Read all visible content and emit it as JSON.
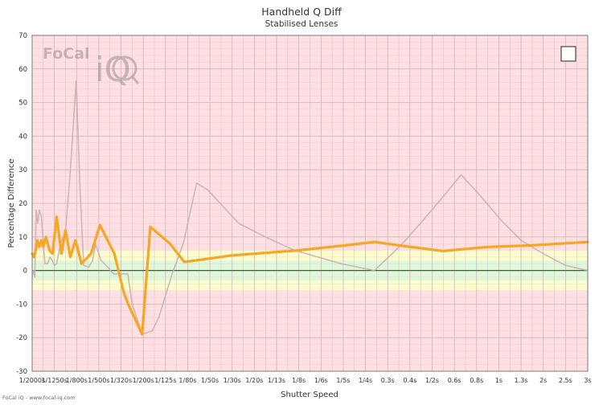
{
  "chart_data": {
    "type": "line",
    "title": "Handheld Q Diff",
    "subtitle": "Stabilised Lenses",
    "xlabel": "Shutter Speed",
    "ylabel": "Percentage Difference",
    "ylim": [
      -30,
      70
    ],
    "yticks": [
      -30,
      -20,
      -10,
      0,
      10,
      20,
      30,
      40,
      50,
      60,
      70
    ],
    "categories": [
      "1/2000s",
      "1/1250s",
      "1/800s",
      "1/500s",
      "1/320s",
      "1/200s",
      "1/125s",
      "1/80s",
      "1/50s",
      "1/30s",
      "1/20s",
      "1/13s",
      "1/8s",
      "1/6s",
      "1/5s",
      "1/4s",
      "0.3s",
      "0.4s",
      "1/2s",
      "0.6s",
      "0.8s",
      "1s",
      "1.3s",
      "2s",
      "2.5s",
      "3s"
    ],
    "bands": [
      {
        "from": -30,
        "to": -6,
        "color": "#ffdfe2"
      },
      {
        "from": -6,
        "to": -3,
        "color": "#fdfccf"
      },
      {
        "from": -3,
        "to": 3,
        "color": "#e1f7d9"
      },
      {
        "from": 3,
        "to": 6,
        "color": "#fdfccf"
      },
      {
        "from": 6,
        "to": 70,
        "color": "#ffdfe2"
      }
    ],
    "grid": true,
    "legend": "top-right",
    "series": [
      {
        "color": "#c4aeb4",
        "x": [
          0,
          0.06,
          0.12,
          0.18,
          0.25,
          0.32,
          0.42,
          0.5,
          0.58,
          0.7,
          0.8,
          0.9,
          1.0,
          1.1,
          1.28,
          1.5,
          1.7,
          1.98,
          2.15,
          2.32,
          2.55,
          2.72,
          2.85,
          3.1,
          3.4,
          3.65,
          3.9,
          4.08,
          4.3,
          4.5,
          4.95,
          5.4,
          5.7,
          6.3,
          6.8,
          7.4,
          7.9,
          8.6,
          9.3,
          10.5,
          11.8,
          13.9,
          15.4,
          16.2,
          16.8,
          17.2,
          17.6,
          18.5,
          19.3,
          20.2,
          21.1,
          22.0,
          23.0,
          24.0,
          25.0
        ],
        "y": [
          -2,
          0,
          -2,
          18,
          14,
          18,
          16,
          8,
          2,
          2,
          4,
          3,
          1.5,
          2,
          8,
          12,
          28,
          56.5,
          25,
          1.5,
          1,
          3,
          8,
          3,
          1,
          -1,
          -1,
          -1,
          -1,
          -10,
          -19,
          -18,
          -14,
          -1,
          8,
          26,
          24,
          19,
          14,
          10,
          6,
          2,
          0,
          5,
          9,
          12,
          15,
          22,
          28.5,
          22,
          15,
          9,
          5,
          1.5,
          0
        ]
      },
      {
        "color": "#f5a724",
        "x": [
          0,
          0.08,
          0.16,
          0.24,
          0.32,
          0.42,
          0.5,
          0.62,
          0.78,
          0.92,
          1.1,
          1.32,
          1.5,
          1.72,
          1.95,
          2.22,
          2.65,
          3.05,
          3.7,
          4.12,
          4.32,
          4.95,
          5.32,
          6.2,
          6.85,
          9.0,
          12.0,
          14.1,
          15.4,
          16.5,
          18.5,
          20.5,
          22.5,
          25.0
        ],
        "y": [
          5,
          4,
          6,
          9,
          7,
          9,
          7,
          10,
          6,
          5,
          16,
          5,
          12,
          4,
          9,
          2,
          5,
          13.5,
          5,
          -6.5,
          -10,
          -19,
          13,
          8,
          2.5,
          4.5,
          6,
          7.5,
          8.5,
          7.5,
          5.8,
          7,
          7.5,
          8.5
        ]
      }
    ]
  },
  "watermark": {
    "text": "FoCal",
    "brand": "iQ"
  },
  "footer": {
    "text": "FoCal iQ - www.focal-iq.com"
  },
  "colors": {
    "zero_line": "#3a5a40",
    "grid": "#c9b7ba",
    "frame": "#7a7a7a"
  }
}
